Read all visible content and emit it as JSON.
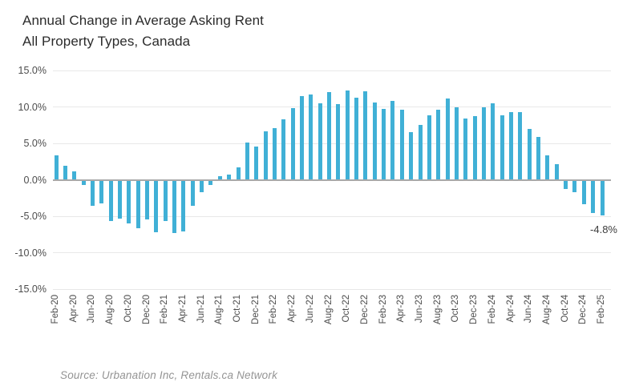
{
  "header": {
    "title": "Annual Change in Average Asking Rent",
    "subtitle": "All Property Types, Canada"
  },
  "chart_data": {
    "type": "bar",
    "title": "Annual Change in Average Asking Rent",
    "subtitle": "All Property Types, Canada",
    "categories": [
      "Feb-20",
      "Mar-20",
      "Apr-20",
      "May-20",
      "Jun-20",
      "Jul-20",
      "Aug-20",
      "Sep-20",
      "Oct-20",
      "Nov-20",
      "Dec-20",
      "Jan-21",
      "Feb-21",
      "Mar-21",
      "Apr-21",
      "May-21",
      "Jun-21",
      "Jul-21",
      "Aug-21",
      "Sep-21",
      "Oct-21",
      "Nov-21",
      "Dec-21",
      "Jan-22",
      "Feb-22",
      "Mar-22",
      "Apr-22",
      "May-22",
      "Jun-22",
      "Jul-22",
      "Aug-22",
      "Sep-22",
      "Oct-22",
      "Nov-22",
      "Dec-22",
      "Jan-23",
      "Feb-23",
      "Mar-23",
      "Apr-23",
      "May-23",
      "Jun-23",
      "Jul-23",
      "Aug-23",
      "Sep-23",
      "Oct-23",
      "Nov-23",
      "Dec-23",
      "Jan-24",
      "Feb-24",
      "Mar-24",
      "Apr-24",
      "May-24",
      "Jun-24",
      "Jul-24",
      "Aug-24",
      "Sep-24",
      "Oct-24",
      "Nov-24",
      "Dec-24",
      "Jan-25",
      "Feb-25"
    ],
    "values": [
      3.4,
      1.9,
      1.1,
      -0.6,
      -3.5,
      -3.1,
      -5.5,
      -5.2,
      -5.9,
      -6.5,
      -5.3,
      -7.1,
      -5.5,
      -7.2,
      -7.0,
      -3.5,
      -1.6,
      -0.6,
      0.5,
      0.7,
      1.7,
      5.1,
      4.6,
      6.7,
      7.1,
      8.3,
      9.8,
      11.5,
      11.7,
      10.5,
      12.0,
      10.4,
      12.2,
      11.3,
      12.1,
      10.6,
      9.7,
      10.8,
      9.6,
      6.5,
      7.5,
      8.9,
      9.6,
      11.1,
      9.9,
      8.4,
      8.7,
      10.0,
      10.5,
      8.8,
      9.3,
      9.3,
      7.0,
      5.9,
      3.3,
      2.1,
      -1.2,
      -1.6,
      -3.2,
      -4.4,
      -4.8
    ],
    "ylim": [
      -15,
      15
    ],
    "yticks": [
      {
        "value": 15,
        "label": "15.0%"
      },
      {
        "value": 10,
        "label": "10.0%"
      },
      {
        "value": 5,
        "label": "5.0%"
      },
      {
        "value": 0,
        "label": "0.0%"
      },
      {
        "value": -5,
        "label": "-5.0%"
      },
      {
        "value": -10,
        "label": "-10.0%"
      },
      {
        "value": -15,
        "label": "-15.0%"
      }
    ],
    "x_tick_every": 2,
    "grid": "horizontal",
    "legend": "none",
    "bar_color": "#40b0d6",
    "annotation": {
      "text": "-4.8%",
      "category": "Feb-25"
    }
  },
  "footer": {
    "source": "Source: Urbanation Inc, Rentals.ca Network"
  },
  "colors": {
    "bar": "#40b0d6",
    "grid": "#e8e8e8",
    "zero_line": "#a9a9a9",
    "title_text": "#2b2b2b",
    "axis_text": "#4c4c4c",
    "source_text": "#949494",
    "annotation_text": "#3c3c3c"
  }
}
